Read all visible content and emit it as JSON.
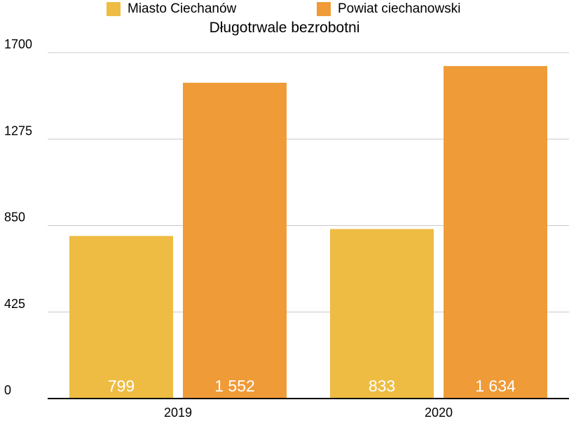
{
  "chart_data": {
    "type": "bar",
    "title": "Długotrwale bezrobotni",
    "xlabel": "",
    "ylabel": "",
    "categories": [
      "2019",
      "2020"
    ],
    "series": [
      {
        "name": "Miasto Ciechanów",
        "color": "#EEBC43",
        "values": [
          799,
          833
        ],
        "labels": [
          "799",
          "833"
        ]
      },
      {
        "name": "Powiat ciechanowski",
        "color": "#EF9B38",
        "values": [
          1552,
          1634
        ],
        "labels": [
          "1 552",
          "1 634"
        ]
      }
    ],
    "ylim": [
      0,
      1700
    ],
    "yticks": [
      0,
      425,
      850,
      1275,
      1700
    ],
    "ytick_labels": [
      "0",
      "425",
      "850",
      "1275",
      "1700"
    ],
    "grid": true,
    "legend_position": "top"
  }
}
